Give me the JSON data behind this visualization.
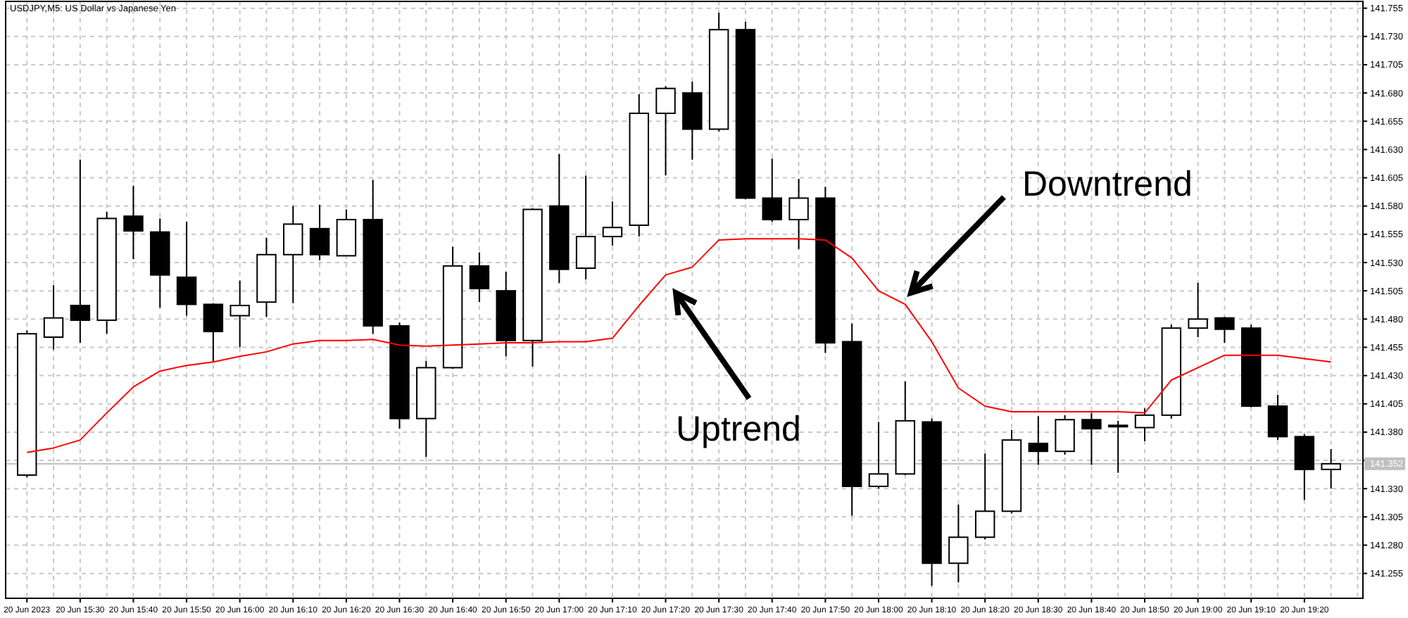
{
  "chart_data": {
    "type": "candlestick",
    "title": "USDJPY,M5: US Dollar vs Japanese Yen",
    "x": [
      "2023-06-20T15:20",
      "2023-06-20T15:25",
      "2023-06-20T15:30",
      "2023-06-20T15:35",
      "2023-06-20T15:40",
      "2023-06-20T15:45",
      "2023-06-20T15:50",
      "2023-06-20T15:55",
      "2023-06-20T16:00",
      "2023-06-20T16:05",
      "2023-06-20T16:10",
      "2023-06-20T16:15",
      "2023-06-20T16:20",
      "2023-06-20T16:25",
      "2023-06-20T16:30",
      "2023-06-20T16:35",
      "2023-06-20T16:40",
      "2023-06-20T16:45",
      "2023-06-20T16:50",
      "2023-06-20T16:55",
      "2023-06-20T17:00",
      "2023-06-20T17:05",
      "2023-06-20T17:10",
      "2023-06-20T17:15",
      "2023-06-20T17:20",
      "2023-06-20T17:25",
      "2023-06-20T17:30",
      "2023-06-20T17:35",
      "2023-06-20T17:40",
      "2023-06-20T17:45",
      "2023-06-20T17:50",
      "2023-06-20T17:55",
      "2023-06-20T18:00",
      "2023-06-20T18:05",
      "2023-06-20T18:10",
      "2023-06-20T18:15",
      "2023-06-20T18:20",
      "2023-06-20T18:25",
      "2023-06-20T18:30",
      "2023-06-20T18:35",
      "2023-06-20T18:40",
      "2023-06-20T18:45",
      "2023-06-20T18:50",
      "2023-06-20T18:55",
      "2023-06-20T19:00",
      "2023-06-20T19:05",
      "2023-06-20T19:10",
      "2023-06-20T19:15",
      "2023-06-20T19:20",
      "2023-06-20T19:25"
    ],
    "ohlc": [
      [
        141.342,
        141.47,
        141.34,
        141.467
      ],
      [
        141.464,
        141.51,
        141.453,
        141.481
      ],
      [
        141.492,
        141.621,
        141.459,
        141.479
      ],
      [
        141.479,
        141.575,
        141.467,
        141.569
      ],
      [
        141.571,
        141.598,
        141.533,
        141.558
      ],
      [
        141.557,
        141.569,
        141.49,
        141.519
      ],
      [
        141.517,
        141.566,
        141.483,
        141.493
      ],
      [
        141.493,
        141.494,
        141.442,
        141.469
      ],
      [
        141.483,
        141.514,
        141.455,
        141.492
      ],
      [
        141.495,
        141.552,
        141.482,
        141.537
      ],
      [
        141.537,
        141.58,
        141.494,
        141.564
      ],
      [
        141.56,
        141.581,
        141.532,
        141.537
      ],
      [
        141.536,
        141.577,
        141.536,
        141.568
      ],
      [
        141.568,
        141.603,
        141.467,
        141.474
      ],
      [
        141.474,
        141.477,
        141.383,
        141.392
      ],
      [
        141.392,
        141.443,
        141.358,
        141.437
      ],
      [
        141.437,
        141.544,
        141.436,
        141.527
      ],
      [
        141.527,
        141.539,
        141.495,
        141.507
      ],
      [
        141.505,
        141.522,
        141.447,
        141.461
      ],
      [
        141.461,
        141.578,
        141.438,
        141.577
      ],
      [
        141.58,
        141.626,
        141.512,
        141.524
      ],
      [
        141.525,
        141.607,
        141.515,
        141.553
      ],
      [
        141.553,
        141.584,
        141.545,
        141.561
      ],
      [
        141.563,
        141.679,
        141.553,
        141.662
      ],
      [
        141.662,
        141.686,
        141.607,
        141.684
      ],
      [
        141.68,
        141.69,
        141.621,
        141.648
      ],
      [
        141.648,
        141.751,
        141.646,
        141.736
      ],
      [
        141.736,
        141.743,
        141.586,
        141.587
      ],
      [
        141.587,
        141.622,
        141.566,
        141.568
      ],
      [
        141.568,
        141.604,
        141.542,
        141.587
      ],
      [
        141.587,
        141.597,
        141.45,
        141.459
      ],
      [
        141.46,
        141.476,
        141.306,
        141.332
      ],
      [
        141.332,
        141.389,
        141.33,
        141.343
      ],
      [
        141.343,
        141.425,
        141.342,
        141.39
      ],
      [
        141.389,
        141.392,
        141.244,
        141.264
      ],
      [
        141.264,
        141.316,
        141.247,
        141.287
      ],
      [
        141.287,
        141.361,
        141.285,
        141.31
      ],
      [
        141.31,
        141.382,
        141.308,
        141.373
      ],
      [
        141.37,
        141.394,
        141.351,
        141.363
      ],
      [
        141.363,
        141.395,
        141.36,
        141.391
      ],
      [
        141.391,
        141.397,
        141.351,
        141.383
      ],
      [
        141.385,
        141.39,
        141.344,
        141.386
      ],
      [
        141.384,
        141.401,
        141.372,
        141.395
      ],
      [
        141.395,
        141.475,
        141.392,
        141.472
      ],
      [
        141.472,
        141.512,
        141.464,
        141.48
      ],
      [
        141.481,
        141.482,
        141.459,
        141.471
      ],
      [
        141.472,
        141.475,
        141.402,
        141.403
      ],
      [
        141.403,
        141.413,
        141.373,
        141.376
      ],
      [
        141.376,
        141.378,
        141.32,
        141.347
      ],
      [
        141.347,
        141.365,
        141.33,
        141.352
      ]
    ],
    "series": [
      {
        "type": "line",
        "color": "#ff0000",
        "values": [
          141.362,
          141.366,
          141.373,
          141.397,
          141.42,
          141.434,
          141.439,
          141.442,
          141.447,
          141.451,
          141.458,
          141.461,
          141.461,
          141.462,
          141.457,
          141.456,
          141.457,
          141.458,
          141.459,
          141.459,
          141.46,
          141.46,
          141.463,
          141.492,
          141.519,
          141.526,
          141.55,
          141.551,
          141.551,
          141.551,
          141.55,
          141.534,
          141.505,
          141.493,
          141.46,
          141.419,
          141.403,
          141.398,
          141.398,
          141.398,
          141.398,
          141.398,
          141.397,
          141.426,
          141.437,
          141.448,
          141.448,
          141.448,
          141.445,
          141.442
        ]
      }
    ],
    "xlim": [
      "2023-06-20T15:16",
      "2023-06-20T19:31"
    ],
    "ylim": [
      141.233,
      141.761
    ],
    "xticks": [
      {
        "value": "2023-06-20T15:20",
        "label": "20 Jun 2023"
      },
      {
        "value": "2023-06-20T15:25",
        "label": null
      },
      {
        "value": "2023-06-20T15:30",
        "label": "20 Jun 15:30"
      },
      {
        "value": "2023-06-20T15:35",
        "label": null
      },
      {
        "value": "2023-06-20T15:40",
        "label": "20 Jun 15:40"
      },
      {
        "value": "2023-06-20T15:45",
        "label": null
      },
      {
        "value": "2023-06-20T15:50",
        "label": "20 Jun 15:50"
      },
      {
        "value": "2023-06-20T15:55",
        "label": null
      },
      {
        "value": "2023-06-20T16:00",
        "label": "20 Jun 16:00"
      },
      {
        "value": "2023-06-20T16:05",
        "label": null
      },
      {
        "value": "2023-06-20T16:10",
        "label": "20 Jun 16:10"
      },
      {
        "value": "2023-06-20T16:15",
        "label": null
      },
      {
        "value": "2023-06-20T16:20",
        "label": "20 Jun 16:20"
      },
      {
        "value": "2023-06-20T16:25",
        "label": null
      },
      {
        "value": "2023-06-20T16:30",
        "label": "20 Jun 16:30"
      },
      {
        "value": "2023-06-20T16:35",
        "label": null
      },
      {
        "value": "2023-06-20T16:40",
        "label": "20 Jun 16:40"
      },
      {
        "value": "2023-06-20T16:45",
        "label": null
      },
      {
        "value": "2023-06-20T16:50",
        "label": "20 Jun 16:50"
      },
      {
        "value": "2023-06-20T16:55",
        "label": null
      },
      {
        "value": "2023-06-20T17:00",
        "label": "20 Jun 17:00"
      },
      {
        "value": "2023-06-20T17:05",
        "label": null
      },
      {
        "value": "2023-06-20T17:10",
        "label": "20 Jun 17:10"
      },
      {
        "value": "2023-06-20T17:15",
        "label": null
      },
      {
        "value": "2023-06-20T17:20",
        "label": "20 Jun 17:20"
      },
      {
        "value": "2023-06-20T17:25",
        "label": null
      },
      {
        "value": "2023-06-20T17:30",
        "label": "20 Jun 17:30"
      },
      {
        "value": "2023-06-20T17:35",
        "label": null
      },
      {
        "value": "2023-06-20T17:40",
        "label": "20 Jun 17:40"
      },
      {
        "value": "2023-06-20T17:45",
        "label": null
      },
      {
        "value": "2023-06-20T17:50",
        "label": "20 Jun 17:50"
      },
      {
        "value": "2023-06-20T17:55",
        "label": null
      },
      {
        "value": "2023-06-20T18:00",
        "label": "20 Jun 18:00"
      },
      {
        "value": "2023-06-20T18:05",
        "label": null
      },
      {
        "value": "2023-06-20T18:10",
        "label": "20 Jun 18:10"
      },
      {
        "value": "2023-06-20T18:15",
        "label": null
      },
      {
        "value": "2023-06-20T18:20",
        "label": "20 Jun 18:20"
      },
      {
        "value": "2023-06-20T18:25",
        "label": null
      },
      {
        "value": "2023-06-20T18:30",
        "label": "20 Jun 18:30"
      },
      {
        "value": "2023-06-20T18:35",
        "label": null
      },
      {
        "value": "2023-06-20T18:40",
        "label": "20 Jun 18:40"
      },
      {
        "value": "2023-06-20T18:45",
        "label": null
      },
      {
        "value": "2023-06-20T18:50",
        "label": "20 Jun 18:50"
      },
      {
        "value": "2023-06-20T18:55",
        "label": null
      },
      {
        "value": "2023-06-20T19:00",
        "label": "20 Jun 19:00"
      },
      {
        "value": "2023-06-20T19:05",
        "label": null
      },
      {
        "value": "2023-06-20T19:10",
        "label": "20 Jun 19:10"
      },
      {
        "value": "2023-06-20T19:15",
        "label": null
      },
      {
        "value": "2023-06-20T19:20",
        "label": "20 Jun 19:20"
      },
      {
        "value": "2023-06-20T19:25",
        "label": null
      },
      {
        "value": "2023-06-20T19:30",
        "label": null
      }
    ],
    "yticks": [
      141.255,
      {
        "value": 141.28,
        "label": "141.280"
      },
      141.305,
      {
        "value": 141.33,
        "label": "141.330"
      },
      {
        "value": 141.355,
        "label": null
      },
      {
        "value": 141.38,
        "label": "141.380"
      },
      141.405,
      {
        "value": 141.43,
        "label": "141.430"
      },
      141.455,
      {
        "value": 141.48,
        "label": "141.480"
      },
      141.505,
      {
        "value": 141.53,
        "label": "141.530"
      },
      141.555,
      {
        "value": 141.58,
        "label": "141.580"
      },
      141.605,
      {
        "value": 141.63,
        "label": "141.630"
      },
      141.655,
      {
        "value": 141.68,
        "label": "141.680"
      },
      141.705,
      {
        "value": 141.73,
        "label": "141.730"
      },
      141.755
    ],
    "grid": true,
    "ref_lines": [
      {
        "axis": "y",
        "value": 141.352,
        "label": "141.352",
        "color": "#c0c0c0"
      }
    ],
    "annotations": [
      "Uptrend",
      "Downtrend"
    ]
  }
}
